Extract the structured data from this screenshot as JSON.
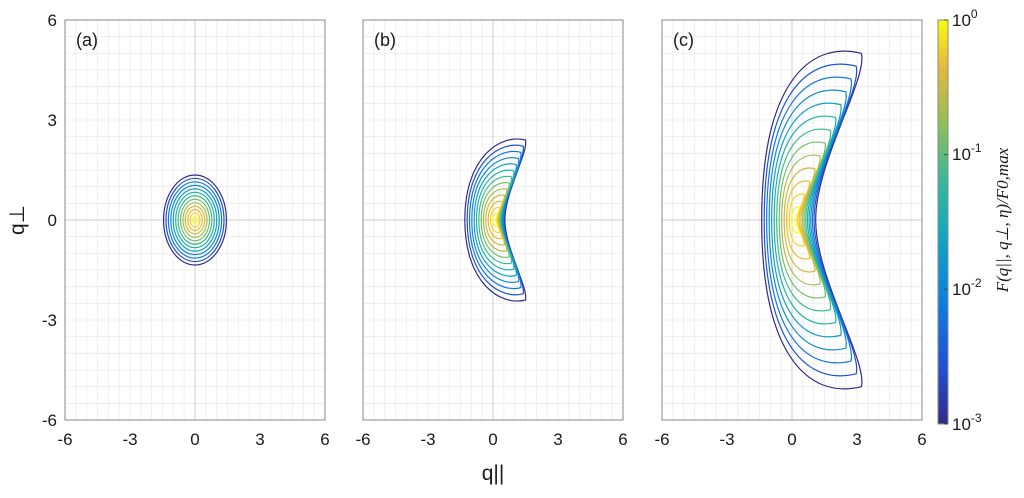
{
  "chart_data": [
    {
      "type": "contour",
      "panel": "(a)",
      "xlim": [
        -6,
        6
      ],
      "ylim": [
        -6,
        6
      ],
      "xticks": [
        "-6",
        "-3",
        "0",
        "3",
        "6"
      ],
      "yticks": [
        "6",
        "3",
        "0",
        "-3",
        "-6"
      ],
      "ylabel": "q⊥",
      "grid": true,
      "contours": {
        "shape": "ellipse",
        "center": [
          0,
          0
        ],
        "outer_semi_axes": [
          1.45,
          1.35
        ],
        "levels": 13
      }
    },
    {
      "type": "contour",
      "panel": "(b)",
      "xlim": [
        -6,
        6
      ],
      "ylim": [
        -6,
        6
      ],
      "xticks": [
        "-6",
        "-3",
        "0",
        "3",
        "6"
      ],
      "yticks": [],
      "xlabel": "q||",
      "grid": true,
      "contours": {
        "shape": "crescent",
        "center": [
          0.1,
          0
        ],
        "outer_extent_x": [
          -1.3,
          1.5
        ],
        "outer_extent_y": [
          -2.4,
          2.4
        ],
        "levels": 13
      }
    },
    {
      "type": "contour",
      "panel": "(c)",
      "xlim": [
        -6,
        6
      ],
      "ylim": [
        -6,
        6
      ],
      "xticks": [
        "-6",
        "-3",
        "0",
        "3",
        "6"
      ],
      "yticks": [],
      "grid": true,
      "contours": {
        "shape": "crescent",
        "center": [
          0.1,
          0
        ],
        "outer_extent_x": [
          -1.4,
          3.2
        ],
        "outer_extent_y": [
          -5.0,
          5.0
        ],
        "levels": 13
      }
    }
  ],
  "colorbar": {
    "scale": "log",
    "range": [
      0.001,
      1
    ],
    "colormap": "parula",
    "tick_labels": [
      {
        "base": "10",
        "exp": "0"
      },
      {
        "base": "10",
        "exp": "-1"
      },
      {
        "base": "10",
        "exp": "-2"
      },
      {
        "base": "10",
        "exp": "-3"
      }
    ],
    "label": "F(q||, q⊥, η)/F0,max"
  },
  "colors": [
    "#352a87",
    "#1a52d6",
    "#0f77e0",
    "#138cd2",
    "#0da2c7",
    "#1fb2a5",
    "#3fbc8a",
    "#72bf69",
    "#a5be4f",
    "#d0ba3b",
    "#f1b92e",
    "#f7d320",
    "#f9fb0e"
  ]
}
